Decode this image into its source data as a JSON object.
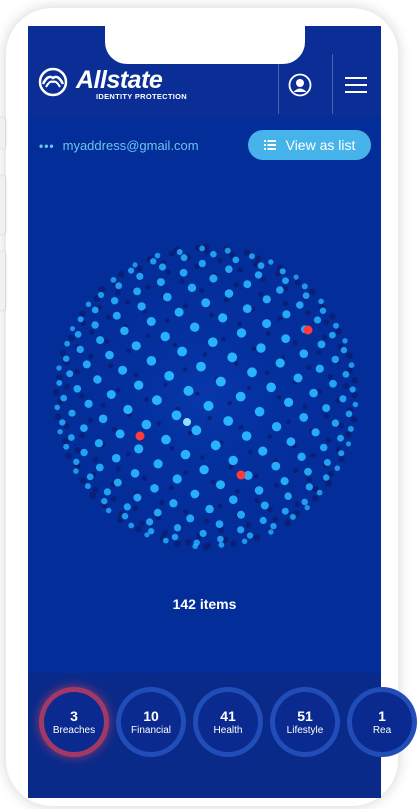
{
  "header": {
    "brand": "Allstate",
    "brand_sub": "IDENTITY PROTECTION"
  },
  "account": {
    "dots": "•••",
    "email": "myaddress@gmail.com"
  },
  "view_button": {
    "label": "View as list"
  },
  "summary": {
    "items_label": "142 items"
  },
  "filters": [
    {
      "count": "3",
      "label": "Breaches",
      "active": true
    },
    {
      "count": "10",
      "label": "Financial",
      "active": false
    },
    {
      "count": "41",
      "label": "Health",
      "active": false
    },
    {
      "count": "51",
      "label": "Lifestyle",
      "active": false
    },
    {
      "count": "1",
      "label": "Rea",
      "active": false
    }
  ],
  "colors": {
    "screen_bg": "#032d99",
    "accent": "#46b4ea",
    "dot_bright": "#29b6ff",
    "dot_dark": "#0a1f74",
    "alert": "#ff3b3b"
  }
}
